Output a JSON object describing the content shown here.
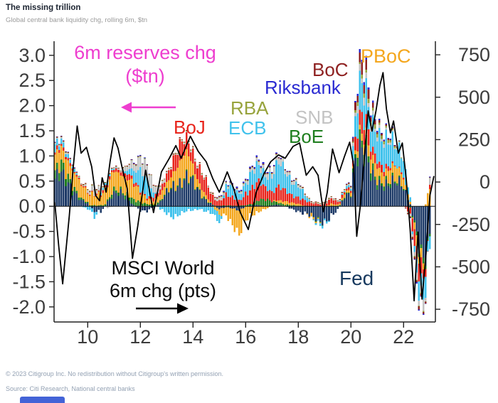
{
  "header": {
    "title": "The missing trillion",
    "subtitle": "Global central bank liquidity chg, rolling 6m, $tn"
  },
  "footer": {
    "line1": "© 2023 Citigroup Inc. No redistribution without Citigroup's written permission.",
    "line2": "Source: Citi Research, National central banks"
  },
  "annotations": {
    "reserves_line1": "6m reserves chg",
    "reserves_line2": "($tn)",
    "msci_line1": "MSCI World",
    "msci_line2": "6m chg (pts)",
    "fed": "Fed",
    "boj": "BoJ",
    "ecb": "ECB",
    "rba": "RBA",
    "riksbank": "Riksbank",
    "snb": "SNB",
    "boe": "BoE",
    "boc": "BoC",
    "pboc": "PBoC",
    "arrow_magenta_color": "#ee3ecf",
    "arrow_black_color": "#000000"
  },
  "chart_data": {
    "type": "bar",
    "subtype": "stacked-monthly-bars-with-line-overlay",
    "title": "Global central bank liquidity chg, rolling 6m, $tn",
    "x_start": 2008.75,
    "x_step_years": 0.25,
    "grid": false,
    "x_axis": {
      "ticks": [
        {
          "label": "10",
          "v": 2010
        },
        {
          "label": "12",
          "v": 2012
        },
        {
          "label": "14",
          "v": 2014
        },
        {
          "label": "16",
          "v": 2016
        },
        {
          "label": "18",
          "v": 2018
        },
        {
          "label": "20",
          "v": 2020
        },
        {
          "label": "22",
          "v": 2022
        }
      ]
    },
    "left_axis": {
      "units": "$tn",
      "range": [
        -2.3,
        3.3
      ],
      "ticks": [
        {
          "label": "3.0",
          "v": 3.0
        },
        {
          "label": "2.5",
          "v": 2.5
        },
        {
          "label": "2.0",
          "v": 2.0
        },
        {
          "label": "1.5",
          "v": 1.5
        },
        {
          "label": "1.0",
          "v": 1.0
        },
        {
          "label": "0.5",
          "v": 0.5
        },
        {
          "label": "0.0",
          "v": 0.0
        },
        {
          "label": "-0.5",
          "v": -0.5
        },
        {
          "label": "-1.0",
          "v": -1.0
        },
        {
          "label": "-1.5",
          "v": -1.5
        },
        {
          "label": "-2.0",
          "v": -2.0
        }
      ]
    },
    "right_axis": {
      "units": "pts",
      "range": [
        -825,
        830
      ],
      "ticks": [
        {
          "label": "750",
          "v": 750
        },
        {
          "label": "500",
          "v": 500
        },
        {
          "label": "250",
          "v": 250
        },
        {
          "label": "0",
          "v": 0
        },
        {
          "label": "-250",
          "v": -250
        },
        {
          "label": "-500",
          "v": -500
        },
        {
          "label": "-750",
          "v": -750
        }
      ]
    },
    "series": [
      {
        "key": "fed",
        "name": "Fed",
        "color": "#1d3a67",
        "values": [
          0.55,
          0.6,
          0.45,
          0.3,
          0.12,
          0.05,
          -0.1,
          -0.12,
          0.08,
          0.22,
          0.28,
          0.18,
          0.02,
          -0.08,
          -0.1,
          -0.02,
          0.08,
          0.25,
          0.4,
          0.48,
          0.55,
          0.45,
          0.28,
          0.12,
          0.02,
          -0.05,
          -0.02,
          -0.05,
          -0.08,
          0.0,
          0.02,
          0.03,
          0.0,
          0.02,
          0.03,
          0.0,
          -0.05,
          -0.1,
          -0.15,
          -0.2,
          -0.25,
          -0.3,
          -0.22,
          -0.08,
          0.18,
          0.22,
          1.25,
          1.2,
          0.6,
          0.4,
          0.45,
          0.5,
          0.45,
          0.35,
          0.05,
          -0.6,
          -1.0,
          -0.55
        ]
      },
      {
        "key": "boe",
        "name": "BoE",
        "color": "#1e7e1e",
        "values": [
          0.12,
          0.18,
          0.15,
          0.08,
          0.03,
          0.02,
          0.02,
          0.02,
          0.03,
          0.08,
          0.05,
          0.08,
          0.1,
          0.08,
          0.05,
          0.03,
          0.02,
          0.02,
          0.02,
          0.02,
          0.03,
          0.02,
          0.02,
          0.02,
          0.01,
          0.01,
          0.02,
          0.01,
          0.01,
          0.02,
          0.03,
          0.1,
          0.12,
          0.08,
          0.05,
          0.03,
          0.02,
          0.01,
          0.01,
          0.0,
          -0.02,
          0.0,
          0.01,
          0.01,
          0.02,
          0.02,
          0.18,
          0.2,
          0.12,
          0.08,
          0.08,
          0.06,
          0.03,
          0.02,
          -0.02,
          -0.06,
          -0.08,
          -0.04
        ]
      },
      {
        "key": "pboc",
        "name": "PBoC",
        "color": "#f4a71e",
        "values": [
          0.3,
          0.32,
          0.35,
          0.3,
          0.25,
          0.22,
          0.25,
          0.2,
          0.28,
          0.42,
          0.35,
          0.28,
          0.3,
          0.22,
          0.12,
          0.08,
          0.12,
          0.18,
          0.28,
          0.4,
          0.45,
          0.32,
          0.15,
          0.08,
          -0.02,
          -0.12,
          -0.18,
          -0.3,
          -0.45,
          -0.3,
          -0.18,
          -0.1,
          -0.05,
          0.0,
          0.05,
          0.06,
          0.05,
          0.04,
          0.0,
          -0.05,
          -0.02,
          0.0,
          0.04,
          0.02,
          0.05,
          0.06,
          0.1,
          0.15,
          0.22,
          0.3,
          0.18,
          0.22,
          0.26,
          0.2,
          0.05,
          -0.18,
          -0.12,
          0.4
        ]
      },
      {
        "key": "boj",
        "name": "BoJ",
        "color": "#e8251c",
        "values": [
          0.06,
          0.06,
          0.05,
          0.03,
          0.02,
          0.02,
          0.01,
          0.03,
          0.05,
          0.06,
          0.06,
          0.1,
          0.06,
          0.05,
          0.03,
          0.06,
          0.1,
          0.16,
          0.26,
          0.32,
          0.28,
          0.26,
          0.3,
          0.26,
          0.16,
          0.1,
          0.2,
          0.15,
          0.1,
          0.24,
          0.3,
          0.34,
          0.25,
          0.2,
          0.26,
          0.2,
          0.15,
          0.14,
          0.1,
          0.06,
          0.05,
          0.05,
          0.1,
          0.05,
          0.05,
          0.05,
          0.28,
          0.32,
          0.22,
          0.14,
          0.1,
          0.05,
          0.0,
          0.05,
          -0.15,
          -0.32,
          -0.28,
          0.12
        ]
      },
      {
        "key": "ecb",
        "name": "ECB",
        "color": "#40c2ec",
        "values": [
          0.15,
          0.1,
          0.06,
          0.04,
          0.0,
          -0.06,
          -0.1,
          0.04,
          0.06,
          0.02,
          0.0,
          0.06,
          0.22,
          0.42,
          0.3,
          0.08,
          -0.06,
          -0.15,
          -0.2,
          -0.15,
          -0.1,
          -0.08,
          -0.05,
          -0.1,
          -0.15,
          -0.18,
          0.15,
          0.2,
          0.15,
          0.2,
          0.3,
          0.32,
          0.26,
          0.32,
          0.45,
          0.38,
          0.3,
          0.24,
          0.1,
          0.0,
          -0.05,
          -0.05,
          0.0,
          0.0,
          0.04,
          0.05,
          0.55,
          0.62,
          0.55,
          0.5,
          0.48,
          0.52,
          0.45,
          0.32,
          0.08,
          -0.28,
          -0.45,
          -0.22
        ]
      },
      {
        "key": "snb",
        "name": "SNB",
        "color": "#c3c3c3",
        "values": [
          0.02,
          0.02,
          0.02,
          0.01,
          0.01,
          0.05,
          0.1,
          0.06,
          -0.04,
          0.01,
          0.02,
          0.1,
          0.16,
          0.22,
          0.26,
          0.18,
          0.08,
          0.03,
          0.02,
          0.02,
          0.03,
          0.03,
          0.02,
          0.02,
          0.02,
          0.06,
          0.04,
          0.03,
          0.03,
          0.05,
          0.06,
          0.08,
          0.08,
          0.1,
          0.12,
          0.08,
          0.06,
          0.04,
          0.02,
          0.01,
          0.01,
          0.01,
          0.02,
          0.01,
          0.02,
          0.02,
          0.12,
          0.14,
          0.1,
          0.06,
          0.05,
          0.04,
          0.02,
          0.0,
          -0.04,
          -0.12,
          -0.18,
          0.1
        ]
      },
      {
        "key": "rba",
        "name": "RBA",
        "color": "#97a33c",
        "values": [
          0.01,
          0.01,
          0.01,
          0.01,
          0.01,
          0.01,
          0.01,
          0.01,
          0.01,
          0.01,
          0.01,
          0.01,
          0.01,
          0.01,
          0.01,
          0.01,
          0.01,
          0.01,
          0.01,
          0.01,
          0.01,
          0.01,
          0.01,
          0.01,
          0.01,
          0.01,
          0.01,
          0.01,
          0.01,
          0.01,
          0.01,
          0.01,
          0.01,
          0.01,
          0.01,
          0.01,
          0.01,
          0.01,
          0.01,
          0.01,
          0.01,
          0.01,
          0.01,
          0.01,
          0.01,
          0.01,
          0.06,
          0.08,
          0.07,
          0.06,
          0.06,
          0.05,
          0.02,
          0.01,
          -0.01,
          -0.02,
          -0.02,
          0.01
        ]
      },
      {
        "key": "boc",
        "name": "BoC",
        "color": "#8e2121",
        "values": [
          0.01,
          0.01,
          0.01,
          0.01,
          0.01,
          0.01,
          0.01,
          0.01,
          0.01,
          0.01,
          0.01,
          0.01,
          0.01,
          0.01,
          0.01,
          0.01,
          0.01,
          0.01,
          0.01,
          0.01,
          0.01,
          0.01,
          0.01,
          0.01,
          0.01,
          0.01,
          0.01,
          0.01,
          0.01,
          0.01,
          0.01,
          0.01,
          0.01,
          0.01,
          0.01,
          0.01,
          0.01,
          0.01,
          0.01,
          0.01,
          0.01,
          0.01,
          0.01,
          0.01,
          0.01,
          0.02,
          0.2,
          0.22,
          0.1,
          0.05,
          0.03,
          0.02,
          0.01,
          -0.01,
          -0.03,
          -0.05,
          -0.04,
          0.01
        ]
      },
      {
        "key": "riksbank",
        "name": "Riksbank",
        "color": "#2a2ad2",
        "values": [
          0.01,
          0.01,
          0.01,
          0.01,
          0.0,
          0.0,
          0.0,
          0.0,
          0.0,
          0.0,
          0.0,
          0.0,
          0.01,
          0.01,
          0.01,
          0.0,
          0.0,
          0.0,
          0.0,
          0.0,
          0.0,
          0.0,
          0.0,
          0.0,
          0.0,
          0.01,
          0.02,
          0.02,
          0.02,
          0.02,
          0.03,
          0.03,
          0.02,
          0.02,
          0.02,
          0.01,
          0.01,
          0.01,
          0.0,
          0.0,
          0.0,
          0.0,
          0.0,
          0.0,
          0.0,
          0.01,
          0.05,
          0.06,
          0.04,
          0.03,
          0.02,
          0.02,
          0.01,
          0.0,
          -0.01,
          -0.02,
          -0.02,
          0.01
        ]
      }
    ],
    "line": {
      "name": "MSCI World 6m chg (pts)",
      "color": "#000000",
      "axis": "right",
      "points": [
        [
          2008.75,
          -120
        ],
        [
          2008.9,
          -380
        ],
        [
          2009.05,
          -600
        ],
        [
          2009.3,
          -200
        ],
        [
          2009.45,
          90
        ],
        [
          2009.6,
          330
        ],
        [
          2009.75,
          170
        ],
        [
          2009.95,
          205
        ],
        [
          2010.15,
          90
        ],
        [
          2010.3,
          -80
        ],
        [
          2010.45,
          -110
        ],
        [
          2010.55,
          25
        ],
        [
          2010.7,
          -60
        ],
        [
          2010.85,
          120
        ],
        [
          2011.0,
          260
        ],
        [
          2011.15,
          200
        ],
        [
          2011.3,
          90
        ],
        [
          2011.5,
          -40
        ],
        [
          2011.7,
          -450
        ],
        [
          2011.9,
          -260
        ],
        [
          2012.2,
          70
        ],
        [
          2012.5,
          -180
        ],
        [
          2012.8,
          60
        ],
        [
          2013.1,
          140
        ],
        [
          2013.35,
          215
        ],
        [
          2013.55,
          140
        ],
        [
          2013.9,
          270
        ],
        [
          2014.2,
          180
        ],
        [
          2014.5,
          120
        ],
        [
          2014.75,
          20
        ],
        [
          2015.0,
          -60
        ],
        [
          2015.3,
          60
        ],
        [
          2015.55,
          -40
        ],
        [
          2015.8,
          -180
        ],
        [
          2016.1,
          -280
        ],
        [
          2016.4,
          -60
        ],
        [
          2016.7,
          50
        ],
        [
          2016.95,
          120
        ],
        [
          2017.25,
          160
        ],
        [
          2017.5,
          140
        ],
        [
          2017.8,
          210
        ],
        [
          2018.05,
          230
        ],
        [
          2018.3,
          40
        ],
        [
          2018.55,
          90
        ],
        [
          2018.75,
          40
        ],
        [
          2018.95,
          -175
        ],
        [
          2019.1,
          -60
        ],
        [
          2019.3,
          195
        ],
        [
          2019.55,
          55
        ],
        [
          2019.75,
          150
        ],
        [
          2019.95,
          235
        ],
        [
          2020.1,
          100
        ],
        [
          2020.22,
          -320
        ],
        [
          2020.35,
          -150
        ],
        [
          2020.5,
          130
        ],
        [
          2020.65,
          420
        ],
        [
          2020.8,
          300
        ],
        [
          2020.95,
          420
        ],
        [
          2021.1,
          570
        ],
        [
          2021.22,
          645
        ],
        [
          2021.35,
          430
        ],
        [
          2021.5,
          290
        ],
        [
          2021.62,
          360
        ],
        [
          2021.8,
          170
        ],
        [
          2021.95,
          230
        ],
        [
          2022.1,
          20
        ],
        [
          2022.25,
          -280
        ],
        [
          2022.4,
          -700
        ],
        [
          2022.55,
          -295
        ],
        [
          2022.7,
          -690
        ],
        [
          2022.85,
          -430
        ],
        [
          2023.0,
          -80
        ],
        [
          2023.15,
          35
        ]
      ]
    }
  }
}
